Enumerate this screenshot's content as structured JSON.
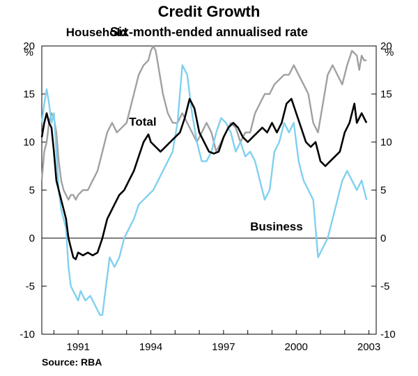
{
  "chart_data": {
    "type": "line",
    "title": "Credit Growth",
    "subtitle": "Six-month-ended annualised rate",
    "source": "Source: RBA",
    "ylabel_left": "%",
    "ylabel_right": "%",
    "ylim": [
      -10,
      20
    ],
    "yticks": [
      20,
      15,
      10,
      5,
      0,
      -5,
      -10
    ],
    "xlim": [
      1989.5,
      2003.3
    ],
    "xticks": [
      1991,
      1994,
      1997,
      2000,
      2003
    ],
    "colors": {
      "household": "#a0a0a0",
      "total": "#000000",
      "business": "#80d0f0",
      "axis": "#000000"
    },
    "series": [
      {
        "name": "Household",
        "label": "Household",
        "color": "#a0a0a0",
        "x": [
          1989.5,
          1989.6,
          1989.7,
          1989.8,
          1989.9,
          1990.0,
          1990.1,
          1990.2,
          1990.3,
          1990.4,
          1990.5,
          1990.6,
          1990.7,
          1990.8,
          1990.9,
          1991.0,
          1991.2,
          1991.4,
          1991.6,
          1991.8,
          1992.0,
          1992.2,
          1992.4,
          1992.6,
          1992.8,
          1993.0,
          1993.1,
          1993.2,
          1993.3,
          1993.5,
          1993.7,
          1993.9,
          1994.0,
          1994.1,
          1994.2,
          1994.3,
          1994.5,
          1994.7,
          1994.9,
          1995.1,
          1995.3,
          1995.5,
          1995.7,
          1995.9,
          1996.1,
          1996.3,
          1996.5,
          1996.7,
          1996.9,
          1997.1,
          1997.3,
          1997.5,
          1997.7,
          1997.9,
          1998.1,
          1998.3,
          1998.5,
          1998.7,
          1998.9,
          1999.1,
          1999.3,
          1999.5,
          1999.7,
          1999.9,
          2000.1,
          2000.3,
          2000.5,
          2000.7,
          2000.9,
          2001.1,
          2001.3,
          2001.5,
          2001.7,
          2001.9,
          2002.1,
          2002.3,
          2002.5,
          2002.6,
          2002.7,
          2002.8,
          2002.9
        ],
        "y": [
          6,
          9,
          10,
          12,
          13,
          12.5,
          11,
          8,
          6,
          5,
          4.5,
          4,
          4.5,
          4.5,
          4,
          4.5,
          5,
          5,
          6,
          7,
          9,
          11,
          12,
          11,
          11.5,
          12,
          13,
          14,
          15,
          17,
          18,
          18.5,
          19.5,
          20,
          19.5,
          18,
          15,
          13,
          12,
          12,
          13,
          12,
          11,
          10,
          11,
          12,
          11,
          9,
          10,
          11,
          12,
          11.5,
          10,
          11,
          11,
          13,
          14,
          15,
          15,
          16,
          16.5,
          17,
          17,
          18,
          17,
          16,
          15,
          12,
          11,
          14,
          17,
          18,
          17,
          16,
          18,
          19.5,
          19,
          17.5,
          19,
          18.5,
          18.5
        ]
      },
      {
        "name": "Total",
        "label": "Total",
        "color": "#000000",
        "x": [
          1989.5,
          1989.6,
          1989.7,
          1989.8,
          1989.9,
          1990.0,
          1990.1,
          1990.2,
          1990.3,
          1990.4,
          1990.5,
          1990.6,
          1990.7,
          1990.8,
          1990.9,
          1991.0,
          1991.2,
          1991.4,
          1991.6,
          1991.8,
          1992.0,
          1992.1,
          1992.2,
          1992.3,
          1992.5,
          1992.7,
          1992.9,
          1993.1,
          1993.3,
          1993.5,
          1993.7,
          1993.9,
          1994.0,
          1994.2,
          1994.4,
          1994.6,
          1994.8,
          1995.0,
          1995.2,
          1995.4,
          1995.6,
          1995.8,
          1996.0,
          1996.2,
          1996.4,
          1996.6,
          1996.8,
          1997.0,
          1997.2,
          1997.4,
          1997.6,
          1997.8,
          1998.0,
          1998.2,
          1998.4,
          1998.6,
          1998.8,
          1999.0,
          1999.2,
          1999.4,
          1999.6,
          1999.8,
          2000.0,
          2000.2,
          2000.4,
          2000.6,
          2000.8,
          2001.0,
          2001.2,
          2001.4,
          2001.6,
          2001.8,
          2002.0,
          2002.2,
          2002.4,
          2002.5,
          2002.6,
          2002.7,
          2002.8,
          2002.9
        ],
        "y": [
          10.5,
          12,
          13,
          12,
          11.5,
          9,
          6,
          5,
          4,
          3,
          2,
          0,
          -1,
          -2,
          -2.2,
          -1.5,
          -1.8,
          -1.5,
          -1.8,
          -1.5,
          0,
          1,
          2,
          2.5,
          3.5,
          4.5,
          5,
          6,
          7,
          8.5,
          10,
          10.8,
          10,
          9.5,
          9,
          9.5,
          10,
          10.5,
          11,
          12.5,
          14.5,
          13.5,
          11,
          10,
          9,
          8.8,
          9,
          10.5,
          11.5,
          12,
          11.5,
          10.5,
          10,
          10.5,
          11,
          11.5,
          11,
          12,
          11,
          12,
          14,
          14.5,
          13,
          11.5,
          10,
          9.5,
          10,
          8,
          7.5,
          8,
          8.5,
          9,
          11,
          12,
          14,
          12,
          12.5,
          13,
          12.5,
          12
        ]
      },
      {
        "name": "Business",
        "label": "Business",
        "color": "#80d0f0",
        "x": [
          1989.5,
          1989.6,
          1989.7,
          1989.8,
          1989.9,
          1990.0,
          1990.1,
          1990.2,
          1990.3,
          1990.4,
          1990.5,
          1990.6,
          1990.7,
          1990.8,
          1990.9,
          1991.0,
          1991.1,
          1991.2,
          1991.3,
          1991.5,
          1991.7,
          1991.9,
          1992.0,
          1992.1,
          1992.2,
          1992.3,
          1992.5,
          1992.7,
          1992.9,
          1993.1,
          1993.3,
          1993.5,
          1993.7,
          1993.9,
          1994.1,
          1994.3,
          1994.5,
          1994.7,
          1994.9,
          1995.1,
          1995.3,
          1995.5,
          1995.7,
          1995.9,
          1996.1,
          1996.3,
          1996.5,
          1996.7,
          1996.9,
          1997.1,
          1997.3,
          1997.5,
          1997.7,
          1997.9,
          1998.1,
          1998.3,
          1998.5,
          1998.7,
          1998.9,
          1999.1,
          1999.3,
          1999.5,
          1999.7,
          1999.9,
          2000.1,
          2000.3,
          2000.5,
          2000.7,
          2000.9,
          2001.1,
          2001.3,
          2001.5,
          2001.7,
          2001.9,
          2002.1,
          2002.3,
          2002.5,
          2002.6,
          2002.7,
          2002.8,
          2002.9
        ],
        "y": [
          12,
          14,
          15.5,
          14,
          12,
          13,
          9,
          5,
          3,
          2,
          1,
          -3,
          -5,
          -5.5,
          -6,
          -6.5,
          -5.5,
          -6,
          -6.5,
          -6,
          -7,
          -8,
          -8,
          -6,
          -4,
          -2,
          -3,
          -2,
          0,
          1,
          2,
          3.5,
          4,
          4.5,
          5,
          6,
          7,
          8,
          9,
          12,
          18,
          17,
          13,
          10,
          8,
          8,
          9,
          11,
          12.5,
          12,
          11,
          9,
          10,
          8.5,
          9,
          8,
          6,
          4,
          5,
          9,
          10,
          12,
          11,
          12,
          8,
          6,
          5,
          4,
          -2,
          -1,
          0,
          2,
          4,
          6,
          7,
          6,
          5,
          5.5,
          6,
          5,
          4
        ]
      }
    ]
  }
}
